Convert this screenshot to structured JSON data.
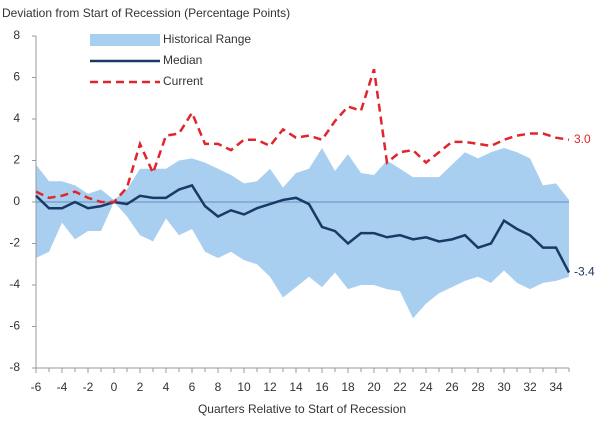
{
  "chart_data": {
    "type": "line",
    "title": "Deviation from Start of Recession (Percentage Points)",
    "x_label": "Quarters Relative to Start of Recession",
    "x": [
      -6,
      -5,
      -4,
      -3,
      -2,
      -1,
      0,
      1,
      2,
      3,
      4,
      5,
      6,
      7,
      8,
      9,
      10,
      11,
      12,
      13,
      14,
      15,
      16,
      17,
      18,
      19,
      20,
      21,
      22,
      23,
      24,
      25,
      26,
      27,
      28,
      29,
      30,
      31,
      32,
      33,
      34,
      35
    ],
    "xlim": [
      -6,
      35
    ],
    "xticks": [
      -6,
      -4,
      -2,
      0,
      2,
      4,
      6,
      8,
      10,
      12,
      14,
      16,
      18,
      20,
      22,
      24,
      26,
      28,
      30,
      32,
      34
    ],
    "ylim": [
      -8,
      8
    ],
    "yticks": [
      -8,
      -6,
      -4,
      -2,
      0,
      2,
      4,
      6,
      8
    ],
    "legend": "top",
    "series": [
      {
        "name": "Historical Range",
        "kind": "band",
        "color": "#a8cff0",
        "low": [
          -2.7,
          -2.4,
          -1.0,
          -1.8,
          -1.4,
          -1.4,
          0.0,
          -0.7,
          -1.6,
          -1.9,
          -0.8,
          -1.6,
          -1.3,
          -2.4,
          -2.7,
          -2.4,
          -2.8,
          -3.0,
          -3.6,
          -4.6,
          -4.1,
          -3.6,
          -4.1,
          -3.4,
          -4.2,
          -4.0,
          -4.0,
          -4.2,
          -4.3,
          -5.6,
          -4.9,
          -4.4,
          -4.1,
          -3.8,
          -3.6,
          -3.9,
          -3.3,
          -3.9,
          -4.2,
          -3.9,
          -3.8,
          -3.6
        ],
        "high": [
          1.8,
          1.0,
          1.0,
          0.8,
          0.4,
          0.6,
          0.1,
          0.6,
          1.6,
          1.6,
          1.6,
          2.0,
          2.1,
          1.9,
          1.6,
          1.3,
          0.9,
          1.0,
          1.6,
          0.7,
          1.4,
          1.6,
          2.6,
          1.5,
          2.3,
          1.4,
          1.3,
          2.0,
          1.6,
          1.2,
          1.2,
          1.2,
          1.8,
          2.4,
          2.1,
          2.4,
          2.6,
          2.4,
          2.1,
          0.8,
          0.9,
          0.1
        ]
      },
      {
        "name": "Median",
        "kind": "solid",
        "color": "#1a3a66",
        "values": [
          0.3,
          -0.3,
          -0.3,
          0.0,
          -0.3,
          -0.2,
          0.0,
          -0.1,
          0.3,
          0.2,
          0.2,
          0.6,
          0.8,
          -0.2,
          -0.7,
          -0.4,
          -0.6,
          -0.3,
          -0.1,
          0.1,
          0.2,
          -0.1,
          -1.2,
          -1.4,
          -2.0,
          -1.5,
          -1.5,
          -1.7,
          -1.6,
          -1.8,
          -1.7,
          -1.9,
          -1.8,
          -1.6,
          -2.2,
          -2.0,
          -0.9,
          -1.3,
          -1.6,
          -2.2,
          -2.2,
          -3.4
        ],
        "value_labels": [
          null,
          null,
          null,
          null,
          null,
          null,
          null,
          null,
          null,
          null,
          null,
          null,
          null,
          null,
          null,
          null,
          null,
          null,
          null,
          null,
          null,
          null,
          null,
          null,
          null,
          null,
          null,
          null,
          null,
          null,
          null,
          null,
          null,
          null,
          null,
          null,
          null,
          null,
          null,
          null,
          null,
          "-3.4"
        ]
      },
      {
        "name": "Current",
        "kind": "dashed",
        "color": "#e0262c",
        "values": [
          0.5,
          0.2,
          0.3,
          0.5,
          0.2,
          0.0,
          0.0,
          0.7,
          2.8,
          1.4,
          3.2,
          3.3,
          4.3,
          2.8,
          2.8,
          2.5,
          3.0,
          3.0,
          2.7,
          3.5,
          3.1,
          3.2,
          3.0,
          3.9,
          4.6,
          4.4,
          6.4,
          1.9,
          2.4,
          2.5,
          1.9,
          2.4,
          2.9,
          2.9,
          2.8,
          2.7,
          3.0,
          3.2,
          3.3,
          3.3,
          3.1,
          3.0
        ],
        "value_labels": [
          null,
          null,
          null,
          null,
          null,
          null,
          null,
          null,
          null,
          null,
          null,
          null,
          null,
          null,
          null,
          null,
          null,
          null,
          null,
          null,
          null,
          null,
          null,
          null,
          null,
          null,
          null,
          null,
          null,
          null,
          null,
          null,
          null,
          null,
          null,
          null,
          null,
          null,
          null,
          null,
          null,
          "3.0"
        ]
      }
    ]
  }
}
